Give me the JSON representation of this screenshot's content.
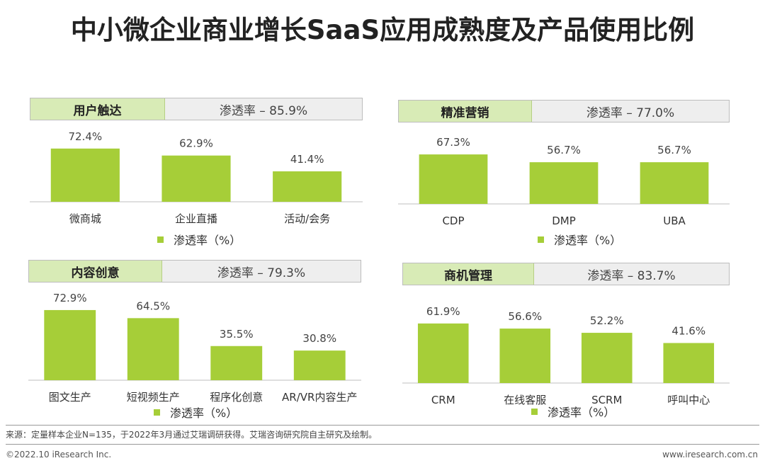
{
  "title": "中小微企业商业增长SaaS应用成熟度及产品使用比例",
  "legend_label": "渗透率（%）",
  "source": "来源：定量样本企业N=135，于2022年3月通过艾瑞调研获得。艾瑞咨询研究院自主研究及绘制。",
  "copyright": "©2022.10 iResearch Inc.",
  "website": "www.iresearch.com.cn",
  "colors": {
    "bar": "#a6ce38",
    "header_highlight": "#d8ebb6",
    "header_bg": "#eeeeee"
  },
  "panels": [
    {
      "name": "用户触达",
      "rate_text": "渗透率 – 85.9%"
    },
    {
      "name": "精准营销",
      "rate_text": "渗透率 – 77.0%"
    },
    {
      "name": "内容创意",
      "rate_text": "渗透率 – 79.3%"
    },
    {
      "name": "商机管理",
      "rate_text": "渗透率 – 83.7%"
    }
  ],
  "chart_data": [
    {
      "type": "bar",
      "title": "用户触达",
      "categories": [
        "微商城",
        "企业直播",
        "活动/会务"
      ],
      "series": [
        {
          "name": "渗透率（%）",
          "values": [
            72.4,
            62.9,
            41.4
          ]
        }
      ],
      "ylim": [
        0,
        100
      ]
    },
    {
      "type": "bar",
      "title": "精准营销",
      "categories": [
        "CDP",
        "DMP",
        "UBA"
      ],
      "series": [
        {
          "name": "渗透率（%）",
          "values": [
            67.3,
            56.7,
            56.7
          ]
        }
      ],
      "ylim": [
        0,
        100
      ]
    },
    {
      "type": "bar",
      "title": "内容创意",
      "categories": [
        "图文生产",
        "短视频生产",
        "程序化创意",
        "AR/VR内容生产"
      ],
      "series": [
        {
          "name": "渗透率（%）",
          "values": [
            72.9,
            64.5,
            35.5,
            30.8
          ]
        }
      ],
      "ylim": [
        0,
        100
      ]
    },
    {
      "type": "bar",
      "title": "商机管理",
      "categories": [
        "CRM",
        "在线客服",
        "SCRM",
        "呼叫中心"
      ],
      "series": [
        {
          "name": "渗透率（%）",
          "values": [
            61.9,
            56.6,
            52.2,
            41.6
          ]
        }
      ],
      "ylim": [
        0,
        100
      ]
    }
  ]
}
